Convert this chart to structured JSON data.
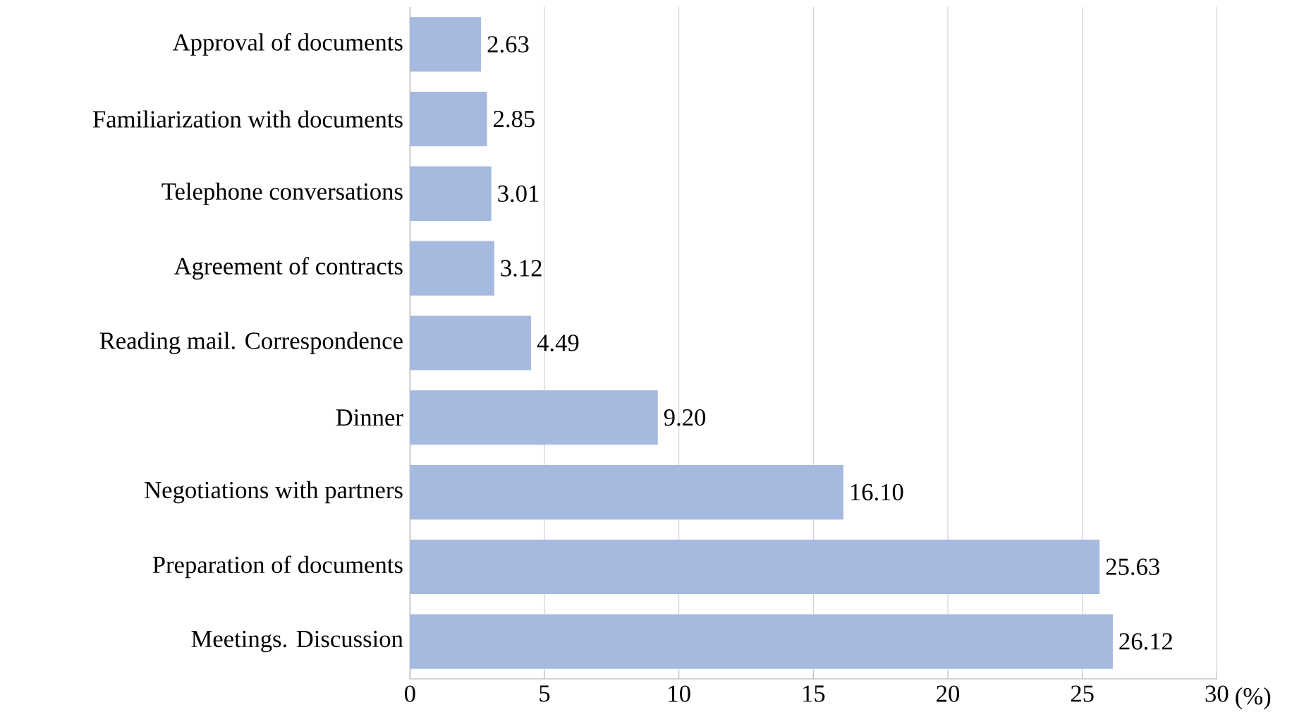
{
  "chart_data": {
    "type": "bar",
    "orientation": "horizontal",
    "xlabel": "(%)",
    "categories": [
      "Approval of documents",
      "Familiarization with documents",
      "Telephone conversations",
      "Agreement of contracts",
      "Reading mail. Correspondence",
      "Dinner",
      "Negotiations with partners",
      "Preparation of documents",
      "Meetings. Discussion"
    ],
    "values": [
      2.63,
      2.85,
      3.01,
      3.12,
      4.49,
      9.2,
      16.1,
      25.63,
      26.12
    ],
    "value_labels": [
      "2.63",
      "2.85",
      "3.01",
      "3.12",
      "4.49",
      "9.20",
      "16.10",
      "25.63",
      "26.12"
    ],
    "color": "#a6b9de",
    "xlim": [
      0,
      30
    ],
    "xticks": [
      0,
      5,
      10,
      15,
      20,
      25,
      30
    ],
    "grid": "x"
  }
}
